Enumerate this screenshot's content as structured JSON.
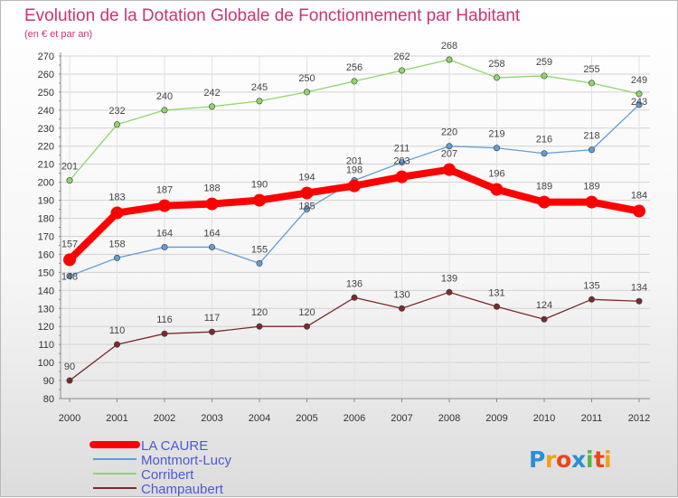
{
  "chart_data": {
    "type": "line",
    "title": "Evolution de la Dotation Globale de Fonctionnement par Habitant",
    "subtitle": "(en € et par an)",
    "categories": [
      "2000",
      "2001",
      "2002",
      "2003",
      "2004",
      "2005",
      "2006",
      "2007",
      "2008",
      "2009",
      "2010",
      "2011",
      "2012"
    ],
    "ylim": [
      80,
      270
    ],
    "yticks": [
      80,
      90,
      100,
      110,
      120,
      130,
      140,
      150,
      160,
      170,
      180,
      190,
      200,
      210,
      220,
      230,
      240,
      250,
      260,
      270
    ],
    "grid": true,
    "legend_position": "bottom-left",
    "series": [
      {
        "name": "LA CAURE",
        "color": "#ff0000",
        "values": [
          157,
          183,
          187,
          188,
          190,
          194,
          198,
          203,
          207,
          196,
          189,
          189,
          184
        ]
      },
      {
        "name": "Montmort-Lucy",
        "color": "#5f9ed8",
        "values": [
          148,
          158,
          164,
          164,
          155,
          185,
          201,
          211,
          220,
          219,
          216,
          218,
          243
        ]
      },
      {
        "name": "Corribert",
        "color": "#8ed66a",
        "values": [
          201,
          232,
          240,
          242,
          245,
          250,
          256,
          262,
          268,
          258,
          259,
          255,
          249
        ]
      },
      {
        "name": "Champaubert",
        "color": "#7a2a2a",
        "values": [
          90,
          110,
          116,
          117,
          120,
          120,
          136,
          130,
          139,
          131,
          124,
          135,
          134
        ]
      }
    ]
  },
  "logo": {
    "letters": [
      "P",
      "r",
      "o",
      "x",
      "i",
      "t",
      "i"
    ],
    "colors": [
      "#2a8fd6",
      "#f0a11a",
      "#e8461e",
      "#2a8fd6",
      "#59b548",
      "#e8461e",
      "#f0a11a"
    ]
  }
}
